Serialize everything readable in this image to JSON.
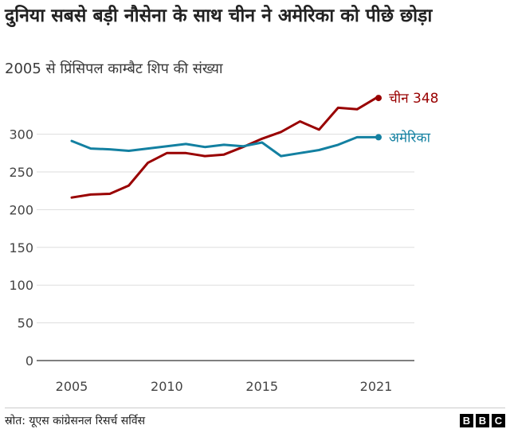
{
  "title": "दुनिया सबसे बड़ी नौसेना के साथ चीन ने अमेरिका को पीछे छोड़ा",
  "subtitle": "2005 से प्रिंसिपल काम्बैट शिप की संख्या",
  "source": "स्रोत: यूएस कांग्रेसनल रिसर्च सर्विस",
  "logo": [
    "B",
    "B",
    "C"
  ],
  "chart_data": {
    "type": "line",
    "x": [
      2005,
      2006,
      2007,
      2008,
      2009,
      2010,
      2011,
      2012,
      2013,
      2014,
      2015,
      2016,
      2017,
      2018,
      2019,
      2020,
      2021
    ],
    "xticks": [
      "2005",
      "2010",
      "2015",
      "2021"
    ],
    "xtick_values": [
      2005,
      2010,
      2015,
      2021
    ],
    "ylim": [
      0,
      350
    ],
    "yticks": [
      "0",
      "50",
      "100",
      "150",
      "200",
      "250",
      "300"
    ],
    "ytick_values": [
      0,
      50,
      100,
      150,
      200,
      250,
      300
    ],
    "grid": true,
    "series": [
      {
        "name": "चीन",
        "end_label": "चीन 348",
        "color": "#990000",
        "values": [
          216,
          220,
          221,
          232,
          262,
          275,
          275,
          271,
          273,
          283,
          294,
          303,
          317,
          306,
          335,
          333,
          348
        ]
      },
      {
        "name": "अमेरिका",
        "end_label": "अमेरिका",
        "color": "#1380a1",
        "values": [
          291,
          281,
          280,
          278,
          281,
          284,
          287,
          283,
          286,
          284,
          289,
          271,
          275,
          279,
          286,
          296,
          296
        ]
      }
    ]
  }
}
